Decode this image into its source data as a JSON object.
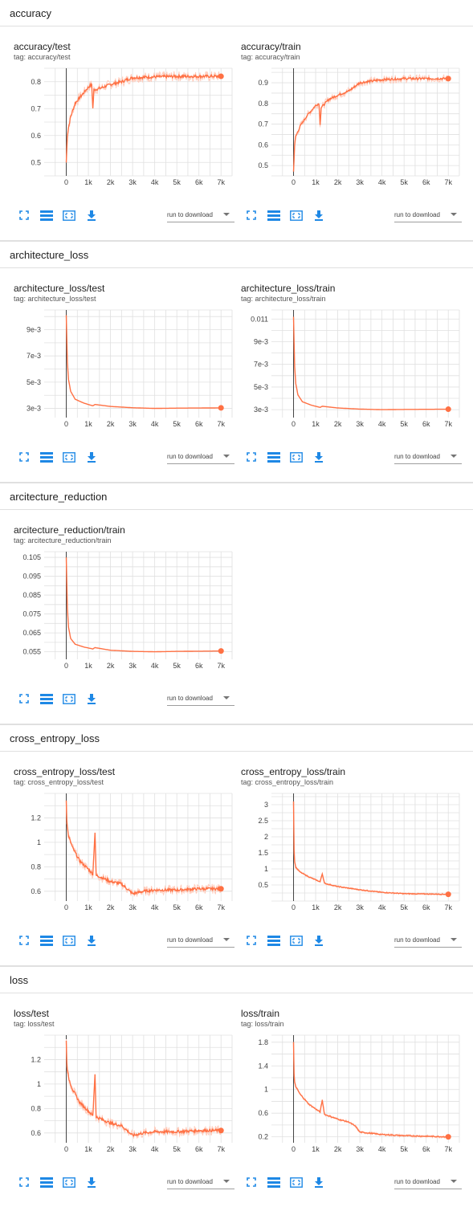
{
  "colors": {
    "line": "#ff7043",
    "line_shadow": "#ffccbc",
    "grid": "#e0e0e0",
    "axis": "#424242",
    "icon": "#1e88e5"
  },
  "icons": [
    "fullscreen-icon",
    "list-icon",
    "fit-domain-icon",
    "download-icon"
  ],
  "select_label": "run to download",
  "sections": [
    {
      "name": "accuracy",
      "cards": [
        {
          "title": "accuracy/test",
          "tag": "tag: accuracy/test"
        },
        {
          "title": "accuracy/train",
          "tag": "tag: accuracy/train"
        }
      ]
    },
    {
      "name": "architecture_loss",
      "cards": [
        {
          "title": "architecture_loss/test",
          "tag": "tag: architecture_loss/test"
        },
        {
          "title": "architecture_loss/train",
          "tag": "tag: architecture_loss/train"
        }
      ]
    },
    {
      "name": "arcitecture_reduction",
      "cards": [
        {
          "title": "arcitecture_reduction/train",
          "tag": "tag: arcitecture_reduction/train"
        }
      ]
    },
    {
      "name": "cross_entropy_loss",
      "cards": [
        {
          "title": "cross_entropy_loss/test",
          "tag": "tag: cross_entropy_loss/test"
        },
        {
          "title": "cross_entropy_loss/train",
          "tag": "tag: cross_entropy_loss/train"
        }
      ]
    },
    {
      "name": "loss",
      "cards": [
        {
          "title": "loss/test",
          "tag": "tag: loss/test"
        },
        {
          "title": "loss/train",
          "tag": "tag: loss/train"
        }
      ]
    }
  ],
  "chart_data": [
    {
      "type": "line",
      "xticks": [
        "0",
        "1k",
        "2k",
        "3k",
        "4k",
        "5k",
        "6k",
        "7k"
      ],
      "xlim": [
        -1000,
        7500
      ],
      "yticks": [
        "0.5",
        "0.6",
        "0.7",
        "0.8"
      ],
      "ytick_values": [
        0.5,
        0.6,
        0.7,
        0.8
      ],
      "ylim": [
        0.45,
        0.85
      ],
      "noise": 0.012,
      "x": [
        0,
        50,
        100,
        200,
        400,
        700,
        1000,
        1150,
        1200,
        1250,
        1500,
        2000,
        2500,
        3000,
        4000,
        5000,
        6000,
        7000
      ],
      "y": [
        0.5,
        0.6,
        0.63,
        0.67,
        0.72,
        0.75,
        0.78,
        0.79,
        0.7,
        0.77,
        0.775,
        0.79,
        0.8,
        0.815,
        0.818,
        0.82,
        0.82,
        0.82
      ]
    },
    {
      "type": "line",
      "xticks": [
        "0",
        "1k",
        "2k",
        "3k",
        "4k",
        "5k",
        "6k",
        "7k"
      ],
      "xlim": [
        -1000,
        7500
      ],
      "yticks": [
        "0.5",
        "0.6",
        "0.7",
        "0.8",
        "0.9"
      ],
      "ytick_values": [
        0.5,
        0.6,
        0.7,
        0.8,
        0.9
      ],
      "ylim": [
        0.45,
        0.97
      ],
      "noise": 0.012,
      "x": [
        0,
        50,
        100,
        300,
        600,
        1000,
        1150,
        1200,
        1250,
        1600,
        2000,
        2500,
        3000,
        4000,
        5000,
        6000,
        7000
      ],
      "y": [
        0.47,
        0.6,
        0.64,
        0.69,
        0.74,
        0.79,
        0.8,
        0.7,
        0.78,
        0.82,
        0.84,
        0.86,
        0.9,
        0.915,
        0.92,
        0.92,
        0.92
      ]
    },
    {
      "type": "line",
      "xticks": [
        "0",
        "1k",
        "2k",
        "3k",
        "4k",
        "5k",
        "6k",
        "7k"
      ],
      "xlim": [
        -1000,
        7500
      ],
      "yticks": [
        "3e-3",
        "5e-3",
        "7e-3",
        "9e-3"
      ],
      "ytick_values": [
        0.003,
        0.005,
        0.007,
        0.009
      ],
      "ylim": [
        0.0023,
        0.0105
      ],
      "noise": 0,
      "x": [
        0,
        50,
        100,
        200,
        400,
        800,
        1200,
        1300,
        2000,
        3000,
        4000,
        5000,
        6000,
        7000
      ],
      "y": [
        0.0101,
        0.0065,
        0.0052,
        0.0043,
        0.0037,
        0.0034,
        0.0032,
        0.0033,
        0.00315,
        0.00305,
        0.003,
        0.00302,
        0.00303,
        0.00304
      ]
    },
    {
      "type": "line",
      "xticks": [
        "0",
        "1k",
        "2k",
        "3k",
        "4k",
        "5k",
        "6k",
        "7k"
      ],
      "xlim": [
        -1000,
        7500
      ],
      "yticks": [
        "3e-3",
        "5e-3",
        "7e-3",
        "9e-3",
        "0.011"
      ],
      "ytick_values": [
        0.003,
        0.005,
        0.007,
        0.009,
        0.011
      ],
      "ylim": [
        0.0023,
        0.0118
      ],
      "noise": 0,
      "x": [
        0,
        50,
        100,
        200,
        400,
        800,
        1200,
        1300,
        2000,
        3000,
        4000,
        5000,
        6000,
        7000
      ],
      "y": [
        0.0112,
        0.0068,
        0.0053,
        0.0043,
        0.0037,
        0.0034,
        0.0032,
        0.0033,
        0.00315,
        0.00305,
        0.003,
        0.00302,
        0.00303,
        0.00304
      ]
    },
    {
      "type": "line",
      "xticks": [
        "0",
        "1k",
        "2k",
        "3k",
        "4k",
        "5k",
        "6k",
        "7k"
      ],
      "xlim": [
        -1000,
        7500
      ],
      "yticks": [
        "0.055",
        "0.065",
        "0.075",
        "0.085",
        "0.095",
        "0.105"
      ],
      "ytick_values": [
        0.055,
        0.065,
        0.075,
        0.085,
        0.095,
        0.105
      ],
      "ylim": [
        0.051,
        0.108
      ],
      "noise": 0,
      "x": [
        0,
        50,
        100,
        200,
        400,
        800,
        1200,
        1300,
        2000,
        3000,
        4000,
        5000,
        6000,
        7000
      ],
      "y": [
        0.105,
        0.078,
        0.068,
        0.062,
        0.059,
        0.0575,
        0.0565,
        0.0572,
        0.0558,
        0.0552,
        0.055,
        0.0552,
        0.0553,
        0.0554
      ]
    },
    {
      "type": "line",
      "xticks": [
        "0",
        "1k",
        "2k",
        "3k",
        "4k",
        "5k",
        "6k",
        "7k"
      ],
      "xlim": [
        -1000,
        7500
      ],
      "yticks": [
        "0.6",
        "0.8",
        "1",
        "1.2"
      ],
      "ytick_values": [
        0.6,
        0.8,
        1.0,
        1.2
      ],
      "ylim": [
        0.52,
        1.4
      ],
      "noise": 0.025,
      "x": [
        0,
        30,
        100,
        300,
        600,
        1000,
        1200,
        1300,
        1350,
        1500,
        2000,
        2500,
        3000,
        3500,
        4000,
        5000,
        6000,
        7000
      ],
      "y": [
        1.35,
        1.15,
        1.05,
        0.95,
        0.85,
        0.78,
        0.74,
        1.08,
        0.73,
        0.72,
        0.68,
        0.66,
        0.58,
        0.6,
        0.61,
        0.61,
        0.62,
        0.62
      ]
    },
    {
      "type": "line",
      "xticks": [
        "0",
        "1k",
        "2k",
        "3k",
        "4k",
        "5k",
        "6k",
        "7k"
      ],
      "xlim": [
        -1000,
        7500
      ],
      "yticks": [
        "0.5",
        "1",
        "1.5",
        "2",
        "2.5",
        "3"
      ],
      "ytick_values": [
        0.5,
        1,
        1.5,
        2,
        2.5,
        3
      ],
      "ylim": [
        0,
        3.35
      ],
      "noise": 0.02,
      "x": [
        0,
        30,
        100,
        300,
        700,
        1200,
        1300,
        1400,
        2000,
        3000,
        4000,
        5000,
        6000,
        7000
      ],
      "y": [
        3.1,
        1.3,
        1.05,
        0.9,
        0.75,
        0.6,
        0.85,
        0.55,
        0.45,
        0.35,
        0.27,
        0.23,
        0.22,
        0.21
      ]
    },
    {
      "type": "line",
      "xticks": [
        "0",
        "1k",
        "2k",
        "3k",
        "4k",
        "5k",
        "6k",
        "7k"
      ],
      "xlim": [
        -1000,
        7500
      ],
      "yticks": [
        "0.6",
        "0.8",
        "1",
        "1.2"
      ],
      "ytick_values": [
        0.6,
        0.8,
        1.0,
        1.2
      ],
      "ylim": [
        0.52,
        1.4
      ],
      "noise": 0.025,
      "x": [
        0,
        30,
        100,
        300,
        600,
        1000,
        1200,
        1300,
        1350,
        1500,
        2000,
        2500,
        3000,
        3500,
        4000,
        5000,
        6000,
        7000
      ],
      "y": [
        1.35,
        1.15,
        1.05,
        0.95,
        0.85,
        0.78,
        0.74,
        1.08,
        0.73,
        0.72,
        0.68,
        0.66,
        0.58,
        0.6,
        0.61,
        0.61,
        0.62,
        0.62
      ]
    },
    {
      "type": "line",
      "xticks": [
        "0",
        "1k",
        "2k",
        "3k",
        "4k",
        "5k",
        "6k",
        "7k"
      ],
      "xlim": [
        -1000,
        7500
      ],
      "yticks": [
        "0.2",
        "0.6",
        "1",
        "1.4",
        "1.8"
      ],
      "ytick_values": [
        0.2,
        0.6,
        1.0,
        1.4,
        1.8
      ],
      "ylim": [
        0.1,
        1.92
      ],
      "noise": 0.015,
      "x": [
        0,
        30,
        100,
        300,
        700,
        1200,
        1300,
        1400,
        2000,
        2500,
        2800,
        3000,
        4000,
        5000,
        6000,
        7000
      ],
      "y": [
        1.8,
        1.15,
        1.05,
        0.92,
        0.75,
        0.62,
        0.82,
        0.58,
        0.5,
        0.45,
        0.38,
        0.28,
        0.24,
        0.22,
        0.21,
        0.2
      ]
    }
  ]
}
